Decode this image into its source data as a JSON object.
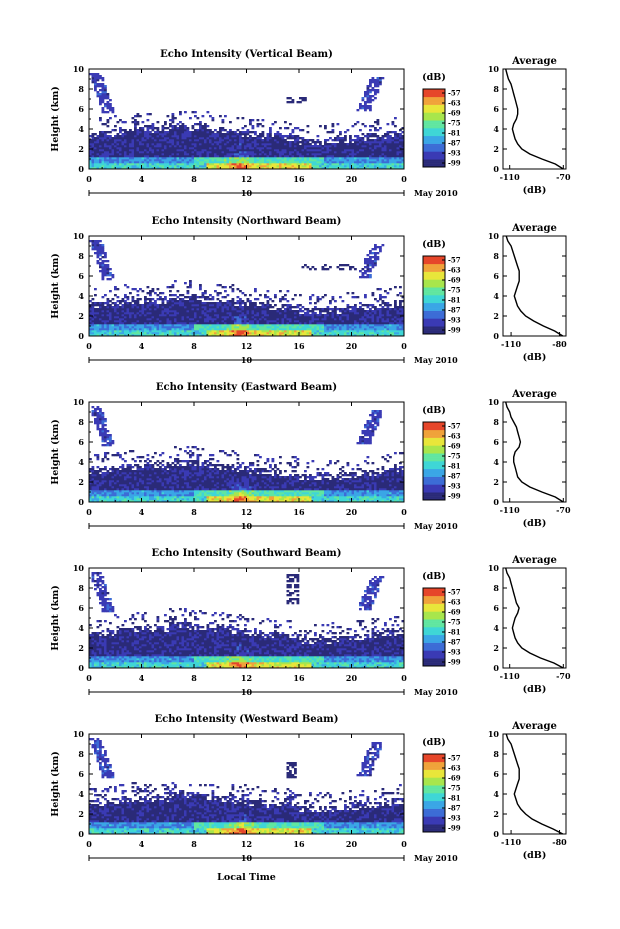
{
  "figure": {
    "xlabel": "Local Time",
    "date_label": "May 2010",
    "day_label": "10",
    "y_ticks": [
      "0",
      "2",
      "4",
      "6",
      "8",
      "10"
    ],
    "x_ticks": [
      "0",
      "4",
      "8",
      "12",
      "16",
      "20",
      "0"
    ],
    "colorbar_unit": "(dB)",
    "avg_title": "Average",
    "avg_xlabel": "(dB)",
    "colors": {
      "colormap": [
        "#2a2a78",
        "#3a3ab4",
        "#3c6cd6",
        "#3aa6e6",
        "#3fd6d6",
        "#60e6a0",
        "#a8e64c",
        "#e8e63a",
        "#f0a23a",
        "#e6462a"
      ]
    }
  },
  "chart_data": [
    {
      "type": "heatmap",
      "title": "Echo Intensity (Vertical Beam)",
      "ylabel": "Height (km)",
      "xlim": [
        0,
        24
      ],
      "ylim": [
        0,
        10
      ],
      "colorbar_ticks": [
        "-57",
        "-63",
        "-69",
        "-75",
        "-81",
        "-87",
        "-93",
        "-99"
      ],
      "colorbar_range": [
        -99,
        -57
      ],
      "average_profile": {
        "title": "Average",
        "xlabel": "(dB)",
        "x_ticks": [
          "-110",
          "-70"
        ],
        "xlim": [
          -115,
          -68
        ],
        "height_km": [
          0,
          0.5,
          1,
          1.5,
          2,
          2.5,
          3,
          3.5,
          4,
          4.5,
          5,
          5.5,
          6,
          6.5,
          7,
          7.5,
          8,
          8.5,
          9,
          9.5,
          10
        ],
        "values_db": [
          -70,
          -76,
          -86,
          -95,
          -101,
          -104,
          -106,
          -107,
          -108,
          -107,
          -105,
          -104,
          -104,
          -105,
          -106,
          -107,
          -108,
          -109,
          -111,
          -112,
          -113
        ]
      }
    },
    {
      "type": "heatmap",
      "title": "Echo Intensity (Northward Beam)",
      "ylabel": "Height (km)",
      "xlim": [
        0,
        24
      ],
      "ylim": [
        0,
        10
      ],
      "colorbar_ticks": [
        "-57",
        "-63",
        "-69",
        "-75",
        "-81",
        "-87",
        "-93",
        "-99"
      ],
      "colorbar_range": [
        -99,
        -57
      ],
      "average_profile": {
        "title": "Average",
        "xlabel": "(dB)",
        "x_ticks": [
          "-110",
          "-80"
        ],
        "xlim": [
          -115,
          -76
        ],
        "height_km": [
          0,
          0.5,
          1,
          1.5,
          2,
          2.5,
          3,
          3.5,
          4,
          4.5,
          5,
          5.5,
          6,
          6.5,
          7,
          7.5,
          8,
          8.5,
          9,
          9.5,
          10
        ],
        "values_db": [
          -78,
          -83,
          -90,
          -96,
          -101,
          -104,
          -106,
          -107,
          -108,
          -107,
          -106,
          -105,
          -105,
          -105,
          -106,
          -107,
          -108,
          -109,
          -110,
          -112,
          -113
        ]
      }
    },
    {
      "type": "heatmap",
      "title": "Echo Intensity (Eastward Beam)",
      "ylabel": "Height (km)",
      "xlim": [
        0,
        24
      ],
      "ylim": [
        0,
        10
      ],
      "colorbar_ticks": [
        "-57",
        "-63",
        "-69",
        "-75",
        "-81",
        "-87",
        "-93",
        "-99"
      ],
      "colorbar_range": [
        -99,
        -57
      ],
      "average_profile": {
        "title": "Average",
        "xlabel": "(dB)",
        "x_ticks": [
          "-110",
          "-70"
        ],
        "xlim": [
          -115,
          -68
        ],
        "height_km": [
          0,
          0.5,
          1,
          1.5,
          2,
          2.5,
          3,
          3.5,
          4,
          4.5,
          5,
          5.5,
          6,
          6.5,
          7,
          7.5,
          8,
          8.5,
          9,
          9.5,
          10
        ],
        "values_db": [
          -70,
          -76,
          -86,
          -95,
          -101,
          -104,
          -105,
          -106,
          -107,
          -107,
          -106,
          -103,
          -102,
          -103,
          -104,
          -105,
          -107,
          -109,
          -110,
          -112,
          -113
        ]
      }
    },
    {
      "type": "heatmap",
      "title": "Echo Intensity (Southward Beam)",
      "ylabel": "Height (km)",
      "xlim": [
        0,
        24
      ],
      "ylim": [
        0,
        10
      ],
      "colorbar_ticks": [
        "-57",
        "-63",
        "-69",
        "-75",
        "-81",
        "-87",
        "-93",
        "-99"
      ],
      "colorbar_range": [
        -99,
        -57
      ],
      "average_profile": {
        "title": "Average",
        "xlabel": "(dB)",
        "x_ticks": [
          "-110",
          "-70"
        ],
        "xlim": [
          -115,
          -68
        ],
        "height_km": [
          0,
          0.5,
          1,
          1.5,
          2,
          2.5,
          3,
          3.5,
          4,
          4.5,
          5,
          5.5,
          6,
          6.5,
          7,
          7.5,
          8,
          8.5,
          9,
          9.5,
          10
        ],
        "values_db": [
          -70,
          -77,
          -87,
          -95,
          -101,
          -104,
          -106,
          -107,
          -108,
          -107,
          -106,
          -104,
          -103,
          -105,
          -106,
          -107,
          -108,
          -109,
          -110,
          -112,
          -113
        ]
      }
    },
    {
      "type": "heatmap",
      "title": "Echo Intensity (Westward Beam)",
      "ylabel": "Height (km)",
      "xlim": [
        0,
        24
      ],
      "ylim": [
        0,
        10
      ],
      "colorbar_ticks": [
        "-57",
        "-63",
        "-69",
        "-75",
        "-81",
        "-87",
        "-93",
        "-99"
      ],
      "colorbar_range": [
        -99,
        -57
      ],
      "average_profile": {
        "title": "Average",
        "xlabel": "(dB)",
        "x_ticks": [
          "-110",
          "-80"
        ],
        "xlim": [
          -115,
          -76
        ],
        "height_km": [
          0,
          0.5,
          1,
          1.5,
          2,
          2.5,
          3,
          3.5,
          4,
          4.5,
          5,
          5.5,
          6,
          6.5,
          7,
          7.5,
          8,
          8.5,
          9,
          9.5,
          10
        ],
        "values_db": [
          -78,
          -84,
          -91,
          -97,
          -101,
          -104,
          -106,
          -107,
          -108,
          -107,
          -106,
          -105,
          -105,
          -105,
          -106,
          -107,
          -108,
          -109,
          -110,
          -112,
          -113
        ]
      }
    }
  ]
}
